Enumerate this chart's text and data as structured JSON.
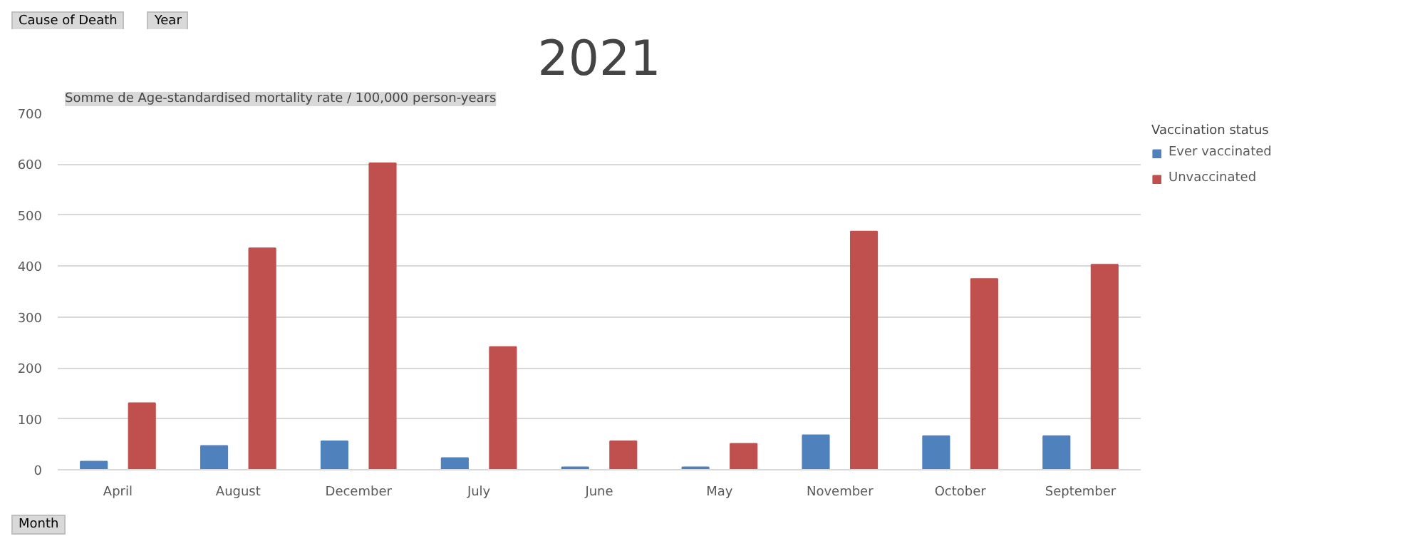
{
  "chart_data": {
    "type": "bar",
    "title": "2021",
    "ylabel": "Somme de Age-standardised mortality rate / 100,000 person-years",
    "legend_title": "Vaccination status",
    "categories": [
      "April",
      "August",
      "December",
      "July",
      "June",
      "May",
      "November",
      "October",
      "September"
    ],
    "series": [
      {
        "name": "Ever vaccinated",
        "color": "#4f81bd",
        "values": [
          16,
          47,
          56,
          23,
          5,
          5,
          68,
          66,
          66
        ]
      },
      {
        "name": "Unvaccinated",
        "color": "#c0504d",
        "values": [
          131,
          435,
          602,
          241,
          56,
          51,
          468,
          375,
          403
        ]
      }
    ],
    "ylim": [
      0,
      700
    ],
    "yticks": [
      0,
      100,
      200,
      300,
      400,
      500,
      600,
      700
    ],
    "grid": "y",
    "legend": "right",
    "annotations": [
      "Cause of Death",
      "Year",
      "Month"
    ]
  }
}
